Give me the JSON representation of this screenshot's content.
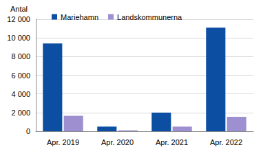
{
  "chart_data": {
    "type": "bar",
    "ylabel": "Antal",
    "categories": [
      "Apr. 2019",
      "Apr. 2020",
      "Apr. 2021",
      "Apr. 2022"
    ],
    "series": [
      {
        "name": "Mariehamn",
        "color": "#0b4ea2",
        "values": [
          9400,
          500,
          2000,
          11100
        ]
      },
      {
        "name": "Landskommunerna",
        "color": "#9d8fd0",
        "values": [
          1650,
          100,
          500,
          1550
        ]
      }
    ],
    "ylim": [
      0,
      12000
    ],
    "yticks": [
      0,
      {
        "value": 2000,
        "label": "2 000"
      },
      {
        "value": 4000,
        "label": "4 000"
      },
      {
        "value": 6000,
        "label": "6 000"
      },
      {
        "value": 8000,
        "label": "8 000"
      },
      {
        "value": 10000,
        "label": "10 000"
      },
      {
        "value": 12000,
        "label": "12 000"
      }
    ],
    "grid": true,
    "legend": "upper left"
  }
}
